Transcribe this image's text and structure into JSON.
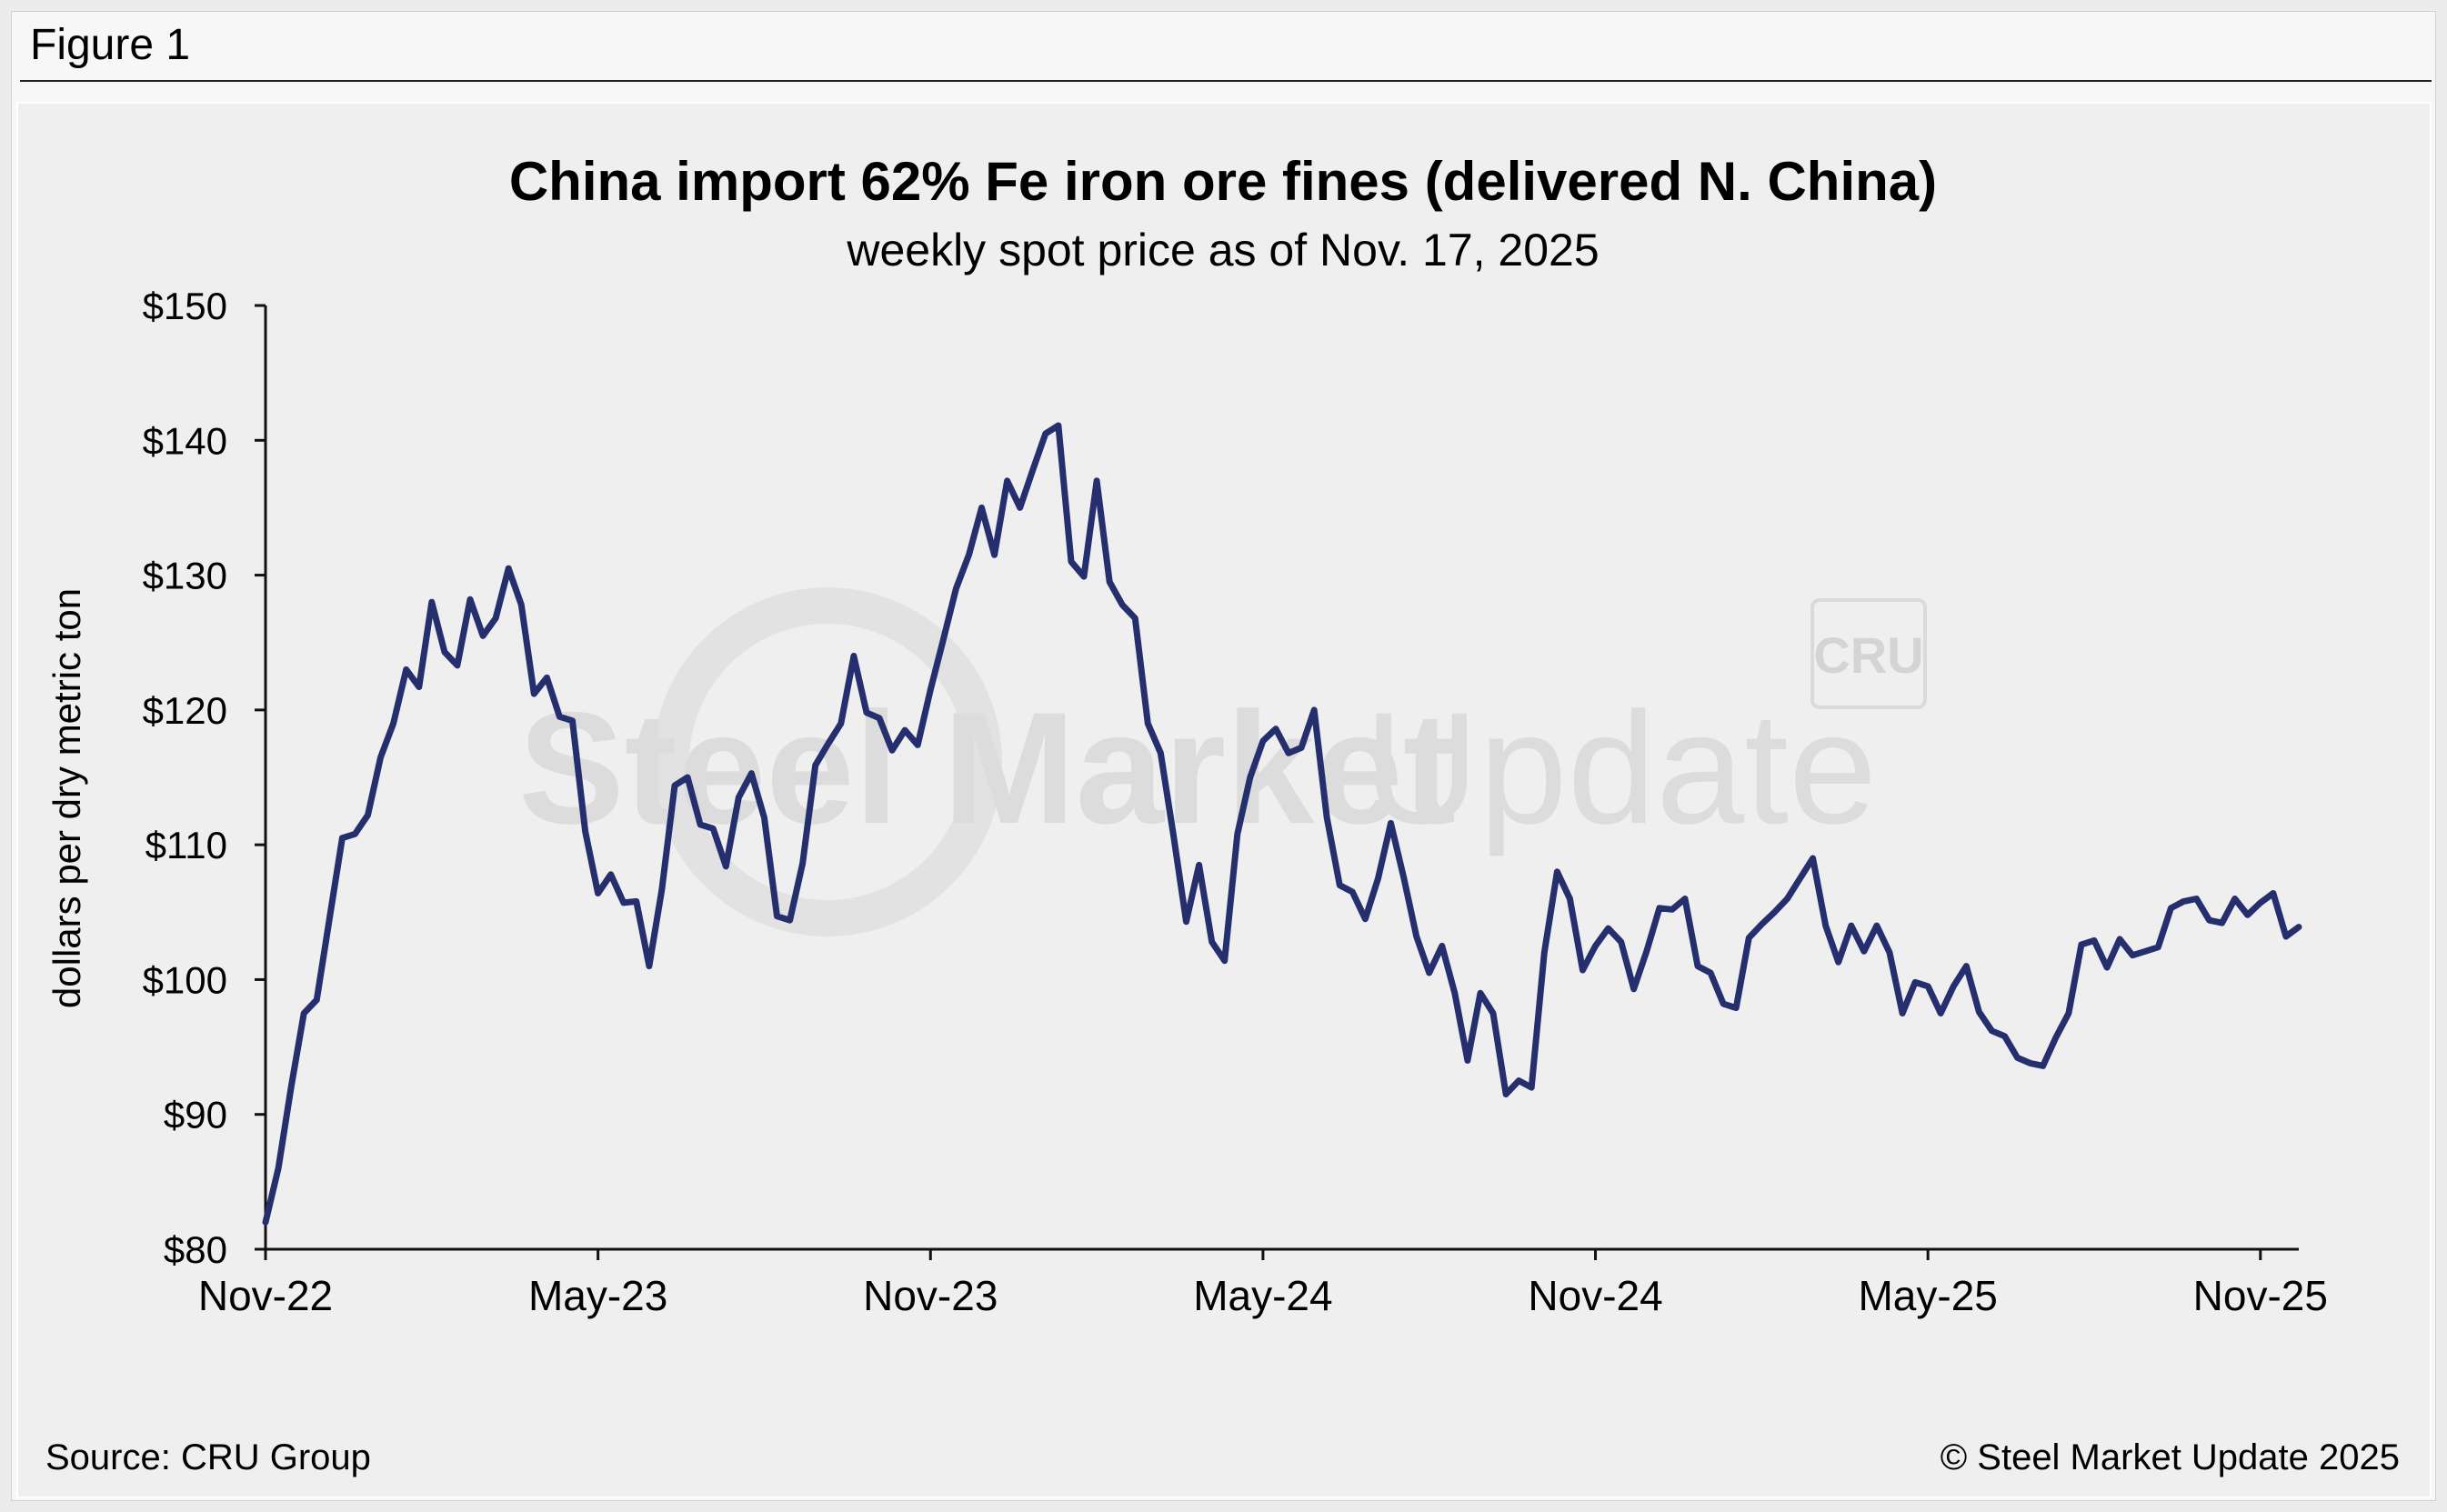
{
  "figure_label": "Figure 1",
  "footer": {
    "source": "Source: CRU Group",
    "copyright": "© Steel Market Update 2025"
  },
  "watermark": {
    "text_bold": "Steel Market",
    "text_light": "Update",
    "logo": "CRU"
  },
  "colors": {
    "line": "#262f6e",
    "axis": "#111111",
    "background": "#efefef",
    "watermark": "#d9d9d9"
  },
  "chart_data": {
    "type": "line",
    "title": "China import 62% Fe iron ore fines (delivered N. China)",
    "subtitle": "weekly spot price as of Nov. 17, 2025",
    "xlabel": "",
    "ylabel": "dollars per dry metric ton",
    "ylim": [
      80,
      150
    ],
    "yticks": [
      80,
      90,
      100,
      110,
      120,
      130,
      140,
      150
    ],
    "ytick_labels": [
      "$80",
      "$90",
      "$100",
      "$110",
      "$120",
      "$130",
      "$140",
      "$150"
    ],
    "xticks": [
      0,
      26,
      52,
      78,
      104,
      130,
      156
    ],
    "xtick_labels": [
      "Nov-22",
      "May-23",
      "Nov-23",
      "May-24",
      "Nov-24",
      "May-25",
      "Nov-25"
    ],
    "xlim": [
      0,
      159
    ],
    "grid": false,
    "series": [
      {
        "name": "China import 62% Fe iron ore fines",
        "values": [
          82,
          86,
          92,
          97.5,
          98.5,
          104.5,
          110.5,
          110.8,
          112.2,
          116.5,
          119,
          123,
          121.7,
          128,
          124.3,
          123.3,
          128.2,
          125.5,
          126.8,
          130.5,
          127.8,
          121.2,
          122.4,
          119.5,
          119.2,
          111,
          106.4,
          107.8,
          105.7,
          105.8,
          101,
          106.7,
          114.4,
          115,
          111.5,
          111.2,
          108.4,
          113.5,
          115.3,
          112,
          104.7,
          104.4,
          108.6,
          115.9,
          117.5,
          119,
          124,
          119.8,
          119.4,
          117,
          118.5,
          117.4,
          121.5,
          125.2,
          129,
          131.5,
          135,
          131.5,
          137,
          135,
          137.8,
          140.5,
          141.1,
          131,
          129.9,
          137,
          129.5,
          127.8,
          126.8,
          119,
          116.8,
          110.7,
          104.3,
          108.5,
          102.8,
          101.4,
          110.8,
          115,
          117.7,
          118.6,
          116.8,
          117.2,
          120,
          112,
          107,
          106.5,
          104.5,
          107.5,
          111.6,
          107.6,
          103.2,
          100.5,
          102.5,
          99,
          94,
          99,
          97.5,
          91.5,
          92.5,
          92,
          102,
          108,
          106,
          100.7,
          102.5,
          103.8,
          102.8,
          99.3,
          102.1,
          105.3,
          105.2,
          106,
          101,
          100.5,
          98.2,
          97.9,
          103.1,
          104.1,
          105,
          106,
          107.5,
          109,
          104,
          101.3,
          104,
          102.1,
          104,
          102,
          97.5,
          99.8,
          99.5,
          97.5,
          99.5,
          101,
          97.6,
          96.2,
          95.8,
          94.2,
          93.8,
          93.6,
          95.7,
          97.5,
          102.6,
          102.9,
          100.9,
          103,
          101.8,
          102.1,
          102.4,
          105.3,
          105.8,
          106,
          104.4,
          104.2,
          106,
          104.8,
          105.7,
          106.4,
          103.2,
          103.9
        ]
      }
    ]
  }
}
